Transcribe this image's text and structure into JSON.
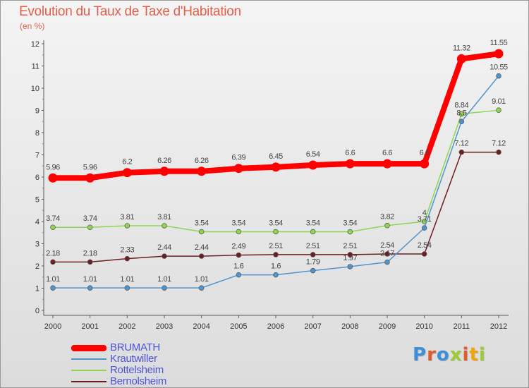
{
  "title": "Evolution du Taux de Taxe d'Habitation",
  "subtitle": "(en %)",
  "logo": "Proxiti",
  "colors": {
    "title": "#e0604a",
    "legend_text": "#4a55d8",
    "axis": "#5a5a5a"
  },
  "chart_data": {
    "type": "line",
    "title": "Evolution du Taux de Taxe d'Habitation",
    "ylabel": "(en %)",
    "xlabel": "",
    "ylim": [
      0,
      12
    ],
    "grid": false,
    "legend": "bottom-left",
    "x": [
      "2000",
      "2001",
      "2002",
      "2003",
      "2004",
      "2005",
      "2006",
      "2007",
      "2008",
      "2009",
      "2010",
      "2011",
      "2012"
    ],
    "yticks": [
      "0",
      "1",
      "2",
      "3",
      "4",
      "5",
      "6",
      "7",
      "8",
      "9",
      "10",
      "11",
      "12"
    ],
    "series": [
      {
        "name": "BRUMATH",
        "color": "#ff0000",
        "values": [
          5.96,
          5.96,
          6.2,
          6.26,
          6.26,
          6.39,
          6.45,
          6.54,
          6.6,
          6.6,
          6.6,
          11.32,
          11.55
        ],
        "labels": [
          "5.96",
          "5.96",
          "6.2",
          "6.26",
          "6.26",
          "6.39",
          "6.45",
          "6.54",
          "6.6",
          "6.6",
          "6.6",
          "11.32",
          "11.55"
        ]
      },
      {
        "name": "Krautwiller",
        "color": "#4f94cd",
        "values": [
          1.01,
          1.01,
          1.01,
          1.01,
          1.01,
          1.6,
          1.6,
          1.79,
          1.97,
          2.17,
          3.71,
          8.5,
          10.55
        ],
        "labels": [
          "1.01",
          "1.01",
          "1.01",
          "1.01",
          "1.01",
          "1.6",
          "1.6",
          "1.79",
          "1.97",
          "2.17",
          "3.71",
          "8.5",
          "10.55"
        ]
      },
      {
        "name": "Rottelsheim",
        "color": "#8fd650",
        "values": [
          3.74,
          3.74,
          3.81,
          3.81,
          3.54,
          3.54,
          3.54,
          3.54,
          3.54,
          3.82,
          4,
          8.84,
          9.01
        ],
        "labels": [
          "3.74",
          "3.74",
          "3.81",
          "3.81",
          "3.54",
          "3.54",
          "3.54",
          "3.54",
          "3.54",
          "3.82",
          "4",
          "8.84",
          "9.01"
        ]
      },
      {
        "name": "Bernolsheim",
        "color": "#6b1e22",
        "values": [
          2.18,
          2.18,
          2.33,
          2.44,
          2.44,
          2.49,
          2.51,
          2.51,
          2.51,
          2.54,
          2.54,
          7.12,
          7.12
        ],
        "labels": [
          "2.18",
          "2.18",
          "2.33",
          "2.44",
          "2.44",
          "2.49",
          "2.51",
          "2.51",
          "2.51",
          "2.54",
          "2.54",
          "7.12",
          "7.12"
        ]
      }
    ]
  }
}
